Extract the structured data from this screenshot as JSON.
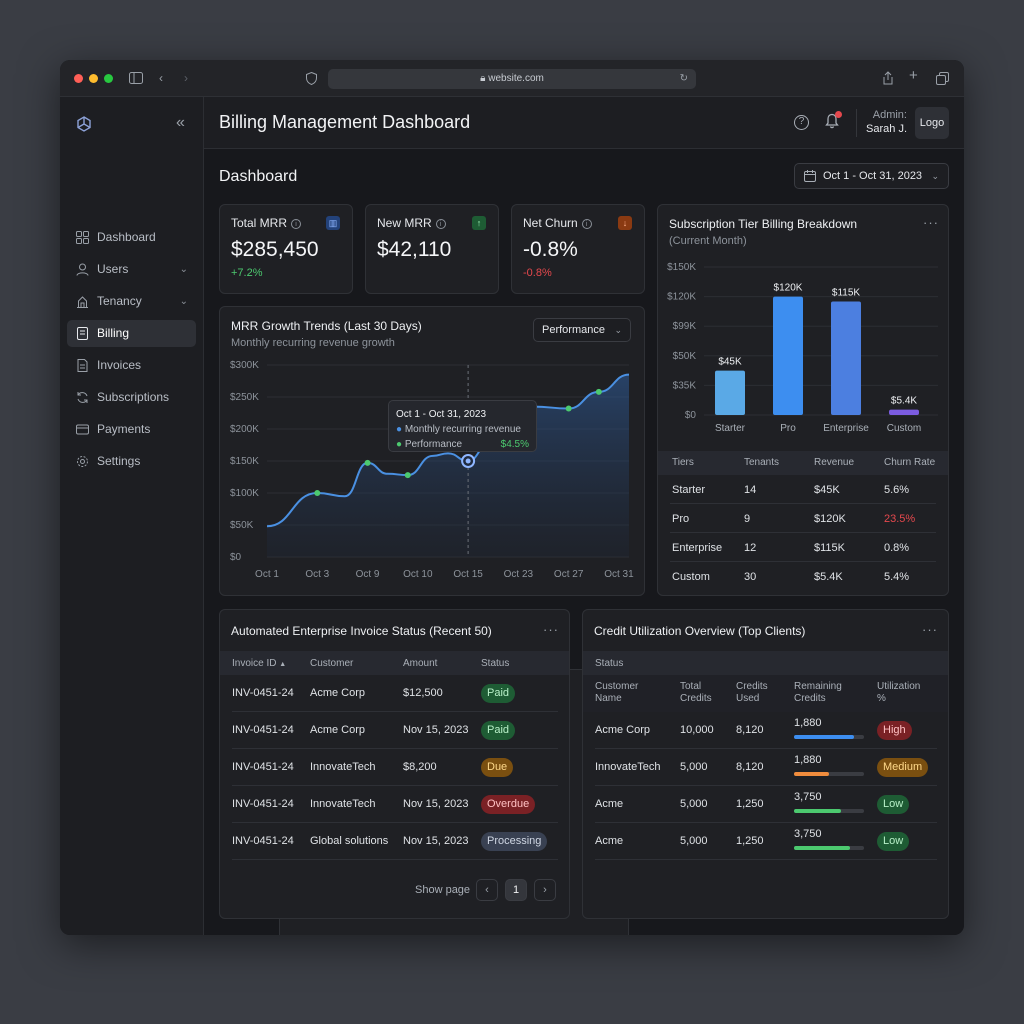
{
  "browser": {
    "url": "website.com"
  },
  "sidebar": {
    "items": [
      {
        "label": "Dashboard",
        "icon": "grid-icon"
      },
      {
        "label": "Users",
        "icon": "users-icon"
      },
      {
        "label": "Tenancy",
        "icon": "building-icon"
      },
      {
        "label": "Billing",
        "icon": "receipt-icon"
      },
      {
        "label": "Invoices",
        "icon": "invoice-icon"
      },
      {
        "label": "Subscriptions",
        "icon": "refresh-icon"
      },
      {
        "label": "Payments",
        "icon": "card-icon"
      },
      {
        "label": "Settings",
        "icon": "gear-icon"
      }
    ]
  },
  "header": {
    "title": "Billing Management Dashboard",
    "admin_label": "Admin:",
    "admin_name": "Sarah J.",
    "logo_label": "Logo"
  },
  "page": {
    "title": "Dashboard",
    "date_range": "Oct 1 - Oct 31, 2023"
  },
  "kpis": [
    {
      "label": "Total MRR",
      "value": "$285,450",
      "delta": "+7.2%",
      "delta_color": "#4cc96f",
      "badge": "bar-chart-icon"
    },
    {
      "label": "New MRR",
      "value": "$42,110",
      "badge": "arrow-up-icon"
    },
    {
      "label": "Net Churn",
      "value": "-0.8%",
      "delta": "-0.8%",
      "delta_color": "#e5484d",
      "badge": "arrow-down-icon"
    }
  ],
  "mrr_chart": {
    "title": "MRR Growth Trends (Last 30 Days)",
    "subtitle": "Monthly recurring revenue growth",
    "selector": "Performance",
    "tooltip": {
      "title": "Oct 1 - Oct 31, 2023",
      "line1": "Monthly recurring revenue",
      "line2_label": "Performance",
      "line2_value": "$4.5%"
    }
  },
  "tier_card": {
    "title": "Subscription Tier Billing Breakdown",
    "subtitle": "(Current Month)",
    "table": {
      "headers": [
        "Tiers",
        "Tenants",
        "Revenue",
        "Churn Rate"
      ],
      "rows": [
        [
          "Starter",
          "14",
          "$45K",
          "5.6%"
        ],
        [
          "Pro",
          "9",
          "$120K",
          "23.5%"
        ],
        [
          "Enterprise",
          "12",
          "$115K",
          "0.8%"
        ],
        [
          "Custom",
          "30",
          "$5.4K",
          "5.4%"
        ]
      ]
    }
  },
  "chart_data": [
    {
      "type": "area",
      "title": "MRR Growth Trends (Last 30 Days)",
      "x_ticks": [
        "Oct 1",
        "Oct 3",
        "Oct 9",
        "Oct 10",
        "Oct 15",
        "Oct 23",
        "Oct 27",
        "Oct 31"
      ],
      "y_ticks": [
        "$0",
        "$50K",
        "$100K",
        "$150K",
        "$200K",
        "$250K",
        "$300K"
      ],
      "ylim": [
        0,
        300000
      ],
      "series": [
        {
          "values": [
            [
              0,
              48000
            ],
            [
              1,
              100000
            ],
            [
              1.55,
              95000
            ],
            [
              2,
              147000
            ],
            [
              2.4,
              130000
            ],
            [
              2.8,
              128000
            ],
            [
              3.3,
              158000
            ],
            [
              3.6,
              162000
            ],
            [
              4.0,
              150000
            ],
            [
              4.4,
              175000
            ],
            [
              4.8,
              210000
            ],
            [
              5.3,
              235000
            ],
            [
              6.0,
              232000
            ],
            [
              6.6,
              258000
            ],
            [
              7.2,
              285000
            ]
          ]
        }
      ],
      "markers": [
        [
          1,
          100000
        ],
        [
          2,
          147000
        ],
        [
          2.8,
          128000
        ],
        [
          4.0,
          150000
        ],
        [
          6.0,
          232000
        ],
        [
          6.6,
          258000
        ]
      ],
      "highlight": [
        4.0,
        150000
      ],
      "colors": {
        "line": "#4a90e2",
        "marker": "#4cc96f"
      }
    },
    {
      "type": "bar",
      "title": "Subscription Tier Billing Breakdown",
      "categories": [
        "Starter",
        "Pro",
        "Enterprise",
        "Custom"
      ],
      "values": [
        45,
        120,
        115,
        5.4
      ],
      "data_labels": [
        "$45K",
        "$120K",
        "$115K",
        "$5.4K"
      ],
      "y_ticks": [
        "$0",
        "$35K",
        "$50K",
        "$99K",
        "$120K",
        "$150K"
      ],
      "ylim": [
        0,
        150
      ],
      "colors": [
        "#5aa9e6",
        "#3d8ef0",
        "#4c7fe0",
        "#7b5ce0"
      ]
    }
  ],
  "invoice_card": {
    "title": "Automated Enterprise Invoice Status (Recent 50)",
    "headers": [
      "Invoice ID",
      "Customer",
      "Amount",
      "Status"
    ],
    "rows": [
      {
        "id": "INV-0451-24",
        "customer": "Acme Corp",
        "amount": "$12,500",
        "status": "Paid",
        "kind": "paid"
      },
      {
        "id": "INV-0451-24",
        "customer": "Acme Corp",
        "amount": "Nov 15, 2023",
        "status": "Paid",
        "kind": "paid"
      },
      {
        "id": "INV-0451-24",
        "customer": "InnovateTech",
        "amount": "$8,200",
        "status": "Due",
        "kind": "due"
      },
      {
        "id": "INV-0451-24",
        "customer": "InnovateTech",
        "amount": "Nov 15, 2023",
        "status": "Overdue",
        "kind": "overdue"
      },
      {
        "id": "INV-0451-24",
        "customer": "Global solutions",
        "amount": "Nov 15, 2023",
        "status": "Processing",
        "kind": "proc"
      }
    ],
    "pagination": {
      "label": "Show page",
      "current": "1"
    }
  },
  "credit_card": {
    "title": "Credit Utilization Overview (Top Clients)",
    "status_label": "Status",
    "headers": [
      [
        "Customer",
        "Name"
      ],
      [
        "Total",
        "Credits"
      ],
      [
        "Credits",
        "Used"
      ],
      [
        "Remaining",
        "Credits"
      ],
      [
        "Utilization",
        "%"
      ]
    ],
    "rows": [
      {
        "customer": "Acme Corp",
        "total": "10,000",
        "used": "8,120",
        "remaining": "1,880",
        "bar": 0.85,
        "bar_color": "#3d8ef0",
        "util": "High",
        "kind": "high"
      },
      {
        "customer": "InnovateTech",
        "total": "5,000",
        "used": "8,120",
        "remaining": "1,880",
        "bar": 0.5,
        "bar_color": "#f08c3d",
        "util": "Medium",
        "kind": "med"
      },
      {
        "customer": "Acme",
        "total": "5,000",
        "used": "1,250",
        "remaining": "3,750",
        "bar": 0.67,
        "bar_color": "#4cc96f",
        "util": "Low",
        "kind": "low"
      },
      {
        "customer": "Acme",
        "total": "5,000",
        "used": "1,250",
        "remaining": "3,750",
        "bar": 0.8,
        "bar_color": "#4cc96f",
        "util": "Low",
        "kind": "low"
      }
    ]
  }
}
